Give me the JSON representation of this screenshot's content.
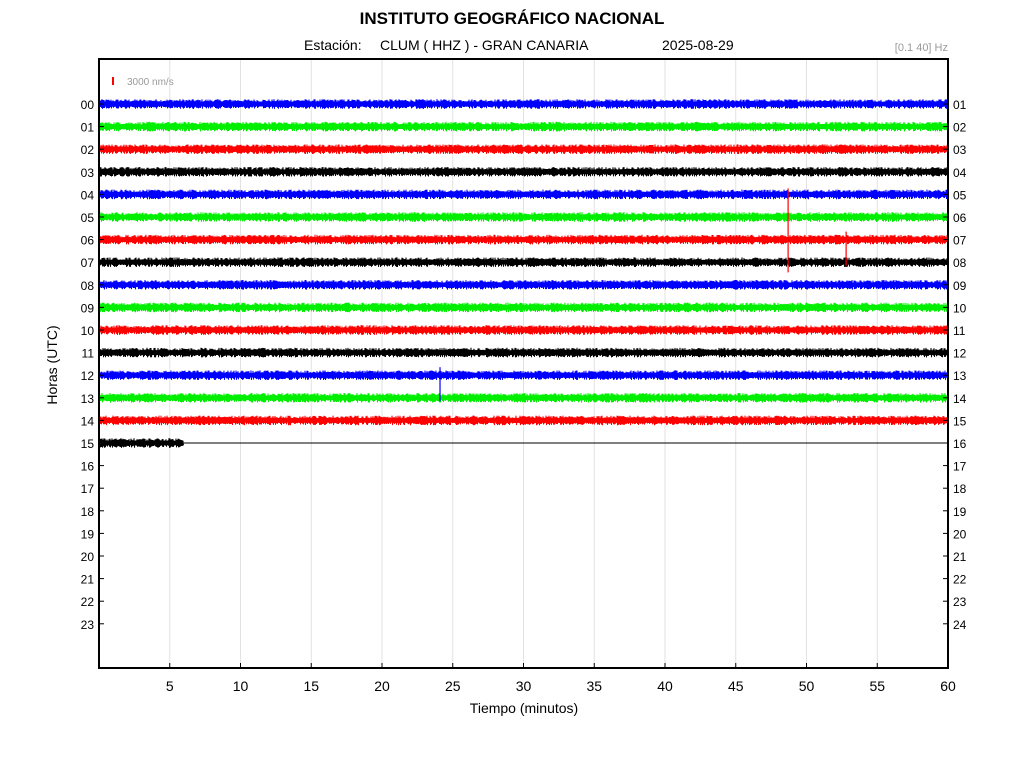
{
  "title": "INSTITUTO GEOGRÁFICO NACIONAL",
  "station_label": "Estación:",
  "station": "CLUM ( HHZ ) - GRAN CANARIA",
  "date": "2025-08-29",
  "band": "[0.1 40] Hz",
  "scale_label": "3000 nm/s",
  "chart_data": {
    "type": "line",
    "title": "INSTITUTO GEOGRÁFICO NACIONAL",
    "xlabel": "Tiempo (minutos)",
    "ylabel": "Horas (UTC)",
    "xlim": [
      0,
      60
    ],
    "x_ticks": [
      "5",
      "10",
      "15",
      "20",
      "25",
      "30",
      "35",
      "40",
      "45",
      "50",
      "55",
      "60"
    ],
    "left_ticks": [
      "00",
      "01",
      "02",
      "03",
      "04",
      "05",
      "06",
      "07",
      "08",
      "09",
      "10",
      "11",
      "12",
      "13",
      "14",
      "15",
      "16",
      "17",
      "18",
      "19",
      "20",
      "21",
      "22",
      "23"
    ],
    "right_ticks": [
      "01",
      "02",
      "03",
      "04",
      "05",
      "06",
      "07",
      "08",
      "09",
      "10",
      "11",
      "12",
      "13",
      "14",
      "15",
      "16",
      "17",
      "18",
      "19",
      "20",
      "21",
      "22",
      "23",
      "24"
    ],
    "grid": "vertical",
    "trace_colors": [
      "#0000ff",
      "#00ee00",
      "#ff0000",
      "#000000"
    ],
    "traces": [
      {
        "hour": "00",
        "end_minute": 60
      },
      {
        "hour": "01",
        "end_minute": 60
      },
      {
        "hour": "02",
        "end_minute": 60
      },
      {
        "hour": "03",
        "end_minute": 60
      },
      {
        "hour": "04",
        "end_minute": 60
      },
      {
        "hour": "05",
        "end_minute": 60
      },
      {
        "hour": "06",
        "end_minute": 60
      },
      {
        "hour": "07",
        "end_minute": 60
      },
      {
        "hour": "08",
        "end_minute": 60
      },
      {
        "hour": "09",
        "end_minute": 60
      },
      {
        "hour": "10",
        "end_minute": 60
      },
      {
        "hour": "11",
        "end_minute": 60
      },
      {
        "hour": "12",
        "end_minute": 60
      },
      {
        "hour": "13",
        "end_minute": 60
      },
      {
        "hour": "14",
        "end_minute": 60
      },
      {
        "hour": "15",
        "end_minute": 6
      }
    ],
    "events": [
      {
        "hour": "04",
        "minute": 48.7
      },
      {
        "hour": "06",
        "minute": 52.8
      },
      {
        "hour": "12",
        "minute": 24.1
      }
    ]
  }
}
